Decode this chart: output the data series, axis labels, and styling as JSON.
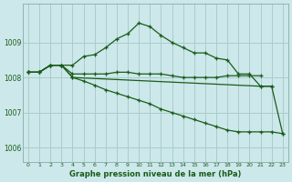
{
  "background_color": "#cce8ea",
  "grid_color": "#aacccc",
  "line_color": "#1a5c1a",
  "title": "Graphe pression niveau de la mer (hPa)",
  "xlim": [
    -0.5,
    23.5
  ],
  "ylim": [
    1005.6,
    1010.1
  ],
  "yticks": [
    1006,
    1007,
    1008,
    1009
  ],
  "xticks": [
    0,
    1,
    2,
    3,
    4,
    5,
    6,
    7,
    8,
    9,
    10,
    11,
    12,
    13,
    14,
    15,
    16,
    17,
    18,
    19,
    20,
    21,
    22,
    23
  ],
  "series": [
    {
      "x": [
        0,
        1,
        2,
        3,
        4,
        5,
        6,
        7,
        8,
        9,
        10,
        11,
        12,
        13,
        14,
        15,
        16,
        17,
        18,
        19,
        20,
        21,
        22
      ],
      "y": [
        1008.15,
        1008.15,
        1008.35,
        1008.35,
        1008.35,
        1008.6,
        1008.65,
        1008.85,
        1009.1,
        1009.25,
        1009.55,
        1009.45,
        1009.2,
        1009.0,
        1008.85,
        1008.7,
        1008.7,
        1008.55,
        1008.5,
        1008.1,
        1008.1,
        1007.75,
        1007.75
      ]
    },
    {
      "x": [
        0,
        1,
        2,
        3,
        4,
        5,
        6,
        7,
        8,
        9,
        10,
        11,
        12,
        13,
        14,
        15,
        16,
        17,
        18,
        19,
        20,
        21
      ],
      "y": [
        1008.15,
        1008.15,
        1008.35,
        1008.35,
        1008.1,
        1008.1,
        1008.1,
        1008.1,
        1008.15,
        1008.15,
        1008.1,
        1008.1,
        1008.1,
        1008.05,
        1008.0,
        1008.0,
        1008.0,
        1008.0,
        1008.05,
        1008.05,
        1008.05,
        1008.05
      ]
    },
    {
      "x": [
        0,
        1,
        2,
        3,
        4,
        5,
        6,
        7,
        8,
        9,
        10,
        11,
        12,
        13,
        14,
        15,
        16,
        17,
        18,
        19,
        20,
        21,
        22,
        23
      ],
      "y": [
        1008.15,
        1008.15,
        1008.35,
        1008.35,
        1008.0,
        1007.9,
        1007.78,
        1007.65,
        1007.55,
        1007.45,
        1007.35,
        1007.25,
        1007.1,
        1007.0,
        1006.9,
        1006.8,
        1006.7,
        1006.6,
        1006.5,
        1006.45,
        1006.45,
        1006.45,
        1006.45,
        1006.4
      ]
    },
    {
      "x": [
        0,
        1,
        2,
        3,
        4,
        21,
        22,
        23
      ],
      "y": [
        1008.15,
        1008.15,
        1008.35,
        1008.35,
        1008.0,
        1007.75,
        1007.75,
        1006.4
      ]
    }
  ]
}
